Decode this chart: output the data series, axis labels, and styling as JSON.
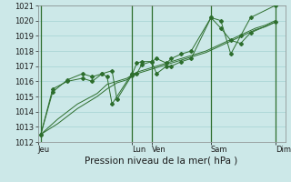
{
  "background_color": "#cce8e8",
  "grid_color": "#99cccc",
  "line_color": "#2d6e2d",
  "marker_color": "#2d6e2d",
  "ylim": [
    1012,
    1021
  ],
  "yticks": [
    1012,
    1013,
    1014,
    1015,
    1016,
    1017,
    1018,
    1019,
    1020,
    1021
  ],
  "xlabel": "Pression niveau de la mer( hPa )",
  "xlabel_fontsize": 7.5,
  "tick_fontsize": 6,
  "day_labels": [
    "Jeu",
    "Lun",
    "Ven",
    "Sam",
    "Dim"
  ],
  "day_x": [
    0,
    9.5,
    11.5,
    17.5,
    24
  ],
  "day_vlines": [
    0.3,
    9.5,
    11.5,
    17.5,
    24
  ],
  "xlim": [
    0,
    25
  ],
  "trend1_x": [
    0.3,
    2,
    4,
    6,
    7,
    8,
    9,
    9.5,
    10,
    11,
    12,
    13,
    14,
    15,
    16,
    17,
    18,
    19,
    20,
    21,
    22,
    23,
    24
  ],
  "trend1_y": [
    1012.5,
    1013.5,
    1014.5,
    1015.2,
    1015.8,
    1016.0,
    1016.2,
    1016.4,
    1016.6,
    1016.8,
    1017.0,
    1017.2,
    1017.4,
    1017.6,
    1017.8,
    1018.0,
    1018.3,
    1018.6,
    1018.9,
    1019.2,
    1019.5,
    1019.7,
    1020.0
  ],
  "trend2_x": [
    0.3,
    2,
    4,
    6,
    7,
    8,
    9,
    9.5,
    10,
    11,
    12,
    13,
    14,
    15,
    16,
    17,
    18,
    19,
    20,
    21,
    22,
    23,
    24
  ],
  "trend2_y": [
    1012.5,
    1013.2,
    1014.2,
    1015.0,
    1015.5,
    1015.9,
    1016.1,
    1016.3,
    1016.5,
    1016.7,
    1016.9,
    1017.1,
    1017.3,
    1017.5,
    1017.7,
    1017.9,
    1018.2,
    1018.5,
    1018.8,
    1019.1,
    1019.4,
    1019.6,
    1019.9
  ],
  "marker_series1_x": [
    0.3,
    1.5,
    3,
    4.5,
    5.5,
    6.5,
    7.5,
    8,
    9.5,
    10.0,
    10.5,
    11.5,
    12,
    13,
    13.5,
    14.5,
    15.5,
    17.5,
    18.5,
    19.5,
    20.5,
    21.5,
    24.0
  ],
  "marker_series1_y": [
    1012.5,
    1015.3,
    1016.1,
    1016.5,
    1016.3,
    1016.5,
    1016.7,
    1014.8,
    1016.4,
    1017.2,
    1017.3,
    1017.3,
    1017.5,
    1017.2,
    1017.5,
    1017.8,
    1018.0,
    1020.2,
    1020.0,
    1017.8,
    1019.0,
    1020.2,
    1021.0
  ],
  "marker_series2_x": [
    0.3,
    1.5,
    3,
    4.5,
    5.5,
    6.5,
    7.0,
    7.5,
    9.5,
    10.0,
    10.5,
    11.5,
    12,
    13,
    13.5,
    14.5,
    15.5,
    17.5,
    18.5,
    19.5,
    20.5,
    21.5,
    24.0
  ],
  "marker_series2_y": [
    1012.5,
    1015.5,
    1016.0,
    1016.2,
    1016.0,
    1016.5,
    1016.3,
    1014.5,
    1016.5,
    1016.5,
    1017.1,
    1017.3,
    1016.5,
    1017.0,
    1017.0,
    1017.3,
    1017.5,
    1020.2,
    1019.5,
    1018.7,
    1018.5,
    1019.2,
    1019.9
  ]
}
